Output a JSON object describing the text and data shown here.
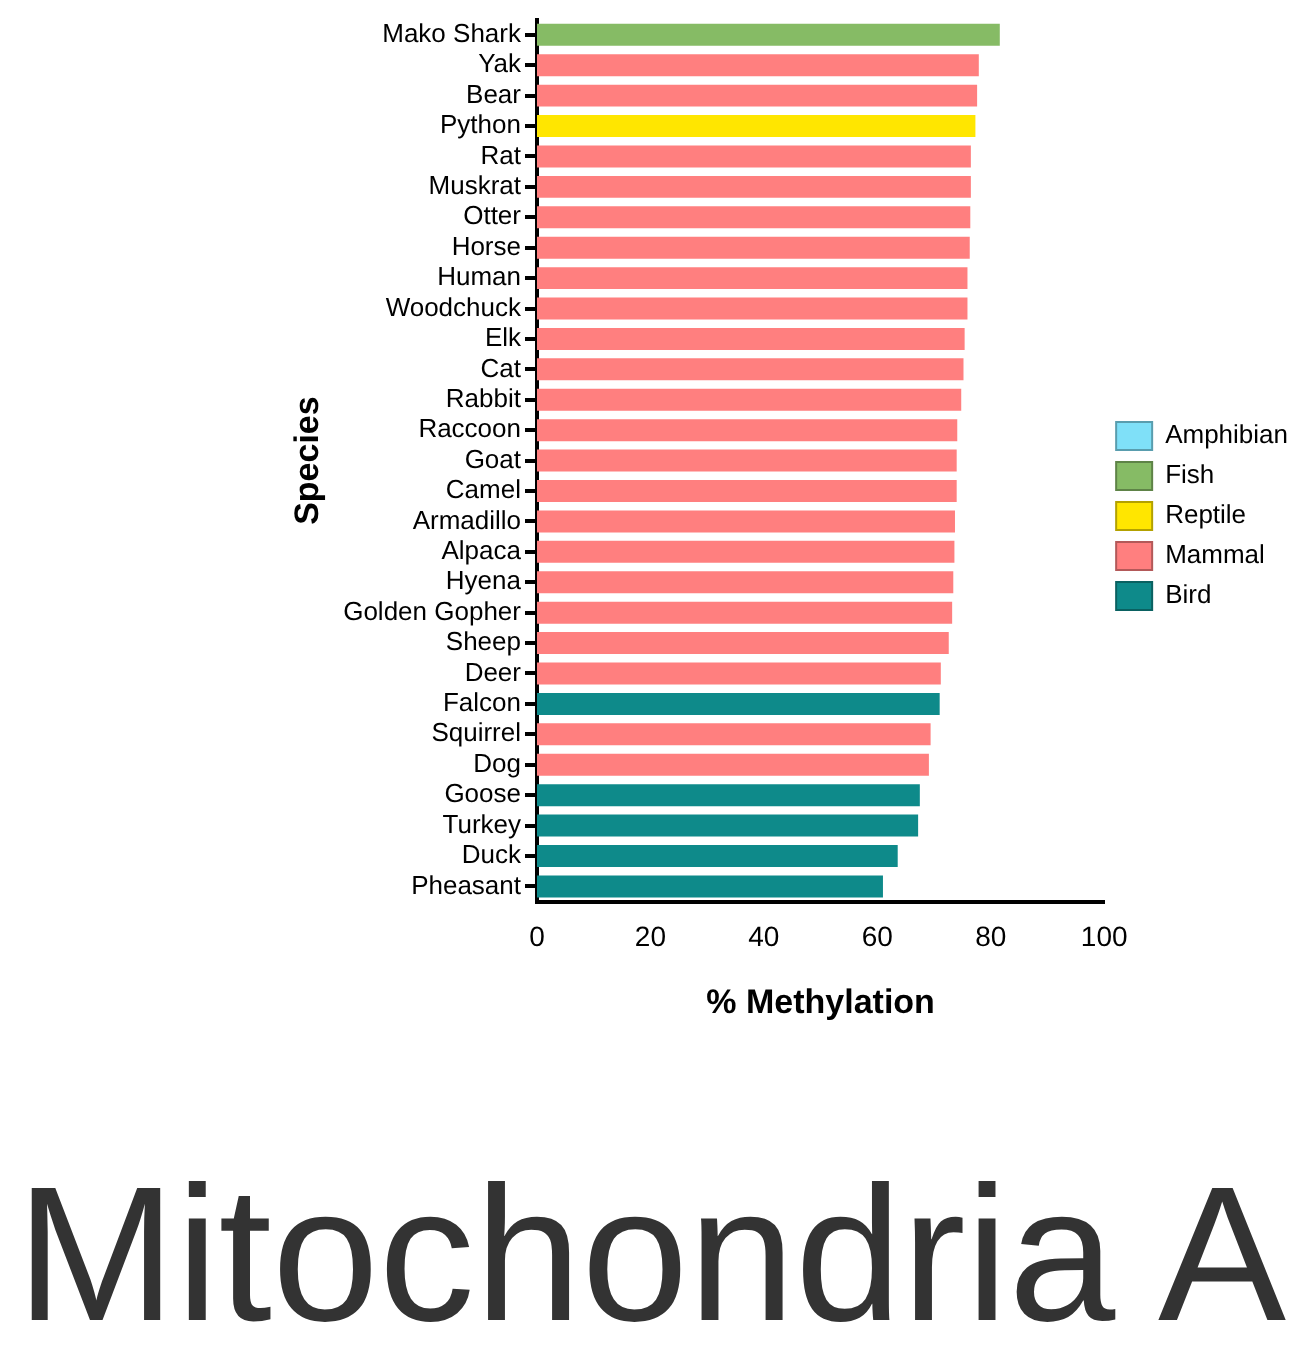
{
  "chart_data": {
    "type": "bar",
    "orientation": "horizontal",
    "stacked": true,
    "xlabel": "% Methylation",
    "ylabel": "Species",
    "categories": [
      "Mako Shark",
      "Yak",
      "Bear",
      "Python",
      "Rat",
      "Muskrat",
      "Otter",
      "Horse",
      "Human",
      "Woodchuck",
      "Elk",
      "Cat",
      "Rabbit",
      "Raccoon",
      "Goat",
      "Camel",
      "Armadillo",
      "Alpaca",
      "Hyena",
      "Golden Gopher",
      "Sheep",
      "Deer",
      "Falcon",
      "Squirrel",
      "Dog",
      "Goose",
      "Turkey",
      "Duck",
      "Pheasant"
    ],
    "series": [
      {
        "name": "Amphibian",
        "color": "#7fe0f8",
        "values": [
          null,
          null,
          null,
          null,
          null,
          null,
          null,
          null,
          null,
          null,
          null,
          null,
          null,
          null,
          null,
          null,
          null,
          null,
          null,
          null,
          null,
          null,
          null,
          null,
          null,
          null,
          null,
          null,
          null
        ]
      },
      {
        "name": "Fish",
        "color": "#86bb65",
        "values": [
          81.6,
          null,
          null,
          null,
          null,
          null,
          null,
          null,
          null,
          null,
          null,
          null,
          null,
          null,
          null,
          null,
          null,
          null,
          null,
          null,
          null,
          null,
          null,
          null,
          null,
          null,
          null,
          null,
          null
        ]
      },
      {
        "name": "Reptile",
        "color": "#ffe600",
        "values": [
          null,
          null,
          null,
          77.3,
          null,
          null,
          null,
          null,
          null,
          null,
          null,
          null,
          null,
          null,
          null,
          null,
          null,
          null,
          null,
          null,
          null,
          null,
          null,
          null,
          null,
          null,
          null,
          null,
          null
        ]
      },
      {
        "name": "Mammal",
        "color": "#ff7f7f",
        "values": [
          null,
          77.9,
          77.6,
          null,
          76.5,
          76.5,
          76.4,
          76.3,
          75.9,
          75.9,
          75.4,
          75.2,
          74.8,
          74.1,
          74.0,
          74.0,
          73.7,
          73.6,
          73.4,
          73.2,
          72.6,
          71.2,
          null,
          69.4,
          69.1,
          null,
          null,
          null,
          null
        ]
      },
      {
        "name": "Bird",
        "color": "#0e8a8a",
        "values": [
          null,
          null,
          null,
          null,
          null,
          null,
          null,
          null,
          null,
          null,
          null,
          null,
          null,
          null,
          null,
          null,
          null,
          null,
          null,
          null,
          null,
          null,
          71.0,
          null,
          null,
          67.5,
          67.2,
          63.6,
          61.0
        ]
      }
    ],
    "xlim": [
      0,
      100
    ],
    "xticks": [
      0,
      20,
      40,
      60,
      80,
      100
    ],
    "grid": false,
    "legend": "right",
    "annotations": [
      "Mitochondria A"
    ]
  }
}
